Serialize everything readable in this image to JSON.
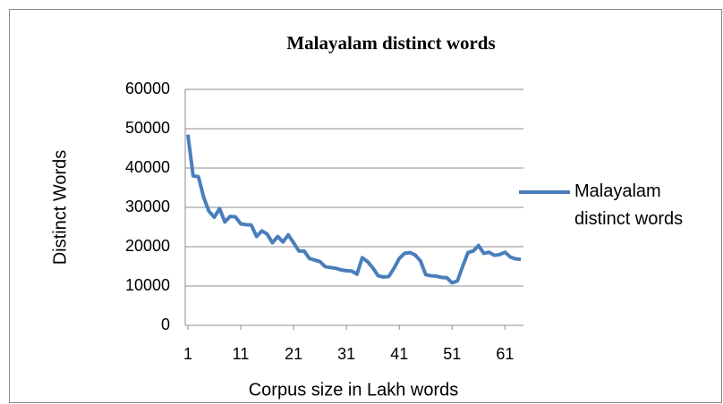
{
  "chart_data": {
    "type": "line",
    "title": "Malayalam distinct words",
    "xlabel": "Corpus  size in Lakh words",
    "ylabel": "Distinct Words",
    "x": [
      1,
      2,
      3,
      4,
      5,
      6,
      7,
      8,
      9,
      10,
      11,
      12,
      13,
      14,
      15,
      16,
      17,
      18,
      19,
      20,
      21,
      22,
      23,
      24,
      25,
      26,
      27,
      28,
      29,
      30,
      31,
      32,
      33,
      34,
      35,
      36,
      37,
      38,
      39,
      40,
      41,
      42,
      43,
      44,
      45,
      46,
      47,
      48,
      49,
      50,
      51,
      52,
      53,
      54,
      55,
      56,
      57,
      58,
      59,
      60,
      61,
      62,
      63,
      64
    ],
    "xlim": [
      0.5,
      64.5
    ],
    "xticks": [
      1,
      11,
      21,
      31,
      41,
      51,
      61
    ],
    "ylim": [
      0,
      60000
    ],
    "yticks": [
      0,
      10000,
      20000,
      30000,
      40000,
      50000,
      60000
    ],
    "grid": true,
    "legend": "right",
    "series": [
      {
        "name": "Malayalam distinct words",
        "color": "#4a7ebb",
        "values": [
          48500,
          38000,
          37800,
          32500,
          29000,
          27500,
          29700,
          26300,
          27700,
          27600,
          25800,
          25600,
          25500,
          22600,
          24000,
          23200,
          21000,
          22600,
          21200,
          23000,
          21000,
          18900,
          18900,
          17000,
          16600,
          16200,
          14900,
          14700,
          14500,
          14100,
          13900,
          13800,
          13000,
          17200,
          16200,
          14600,
          12600,
          12300,
          12400,
          14500,
          17000,
          18300,
          18500,
          17900,
          16400,
          12900,
          12600,
          12500,
          12200,
          12100,
          10800,
          11300,
          15000,
          18500,
          18900,
          20300,
          18300,
          18600,
          17800,
          18000,
          18600,
          17400,
          16900,
          16800
        ]
      }
    ]
  }
}
